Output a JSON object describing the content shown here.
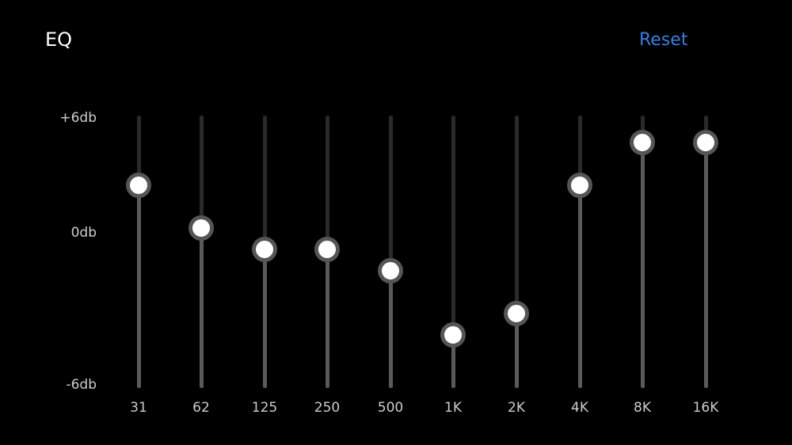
{
  "header": {
    "title": "EQ",
    "reset_label": "Reset"
  },
  "colors": {
    "accent": "#3b7de0",
    "knob": "#ffffff",
    "knob_ring": "#555555",
    "track_active": "#5a5a5a",
    "track_inactive": "#2a2a2a"
  },
  "scale": {
    "max_label": "+6db",
    "mid_label": "0db",
    "min_label": "-6db",
    "min_db": -6,
    "max_db": 6
  },
  "bands": [
    {
      "label": "31",
      "gain_db": 3
    },
    {
      "label": "62",
      "gain_db": 1
    },
    {
      "label": "125",
      "gain_db": 0
    },
    {
      "label": "250",
      "gain_db": 0
    },
    {
      "label": "500",
      "gain_db": -1
    },
    {
      "label": "1K",
      "gain_db": -4
    },
    {
      "label": "2K",
      "gain_db": -3
    },
    {
      "label": "4K",
      "gain_db": 3
    },
    {
      "label": "8K",
      "gain_db": 5
    },
    {
      "label": "16K",
      "gain_db": 5
    }
  ]
}
